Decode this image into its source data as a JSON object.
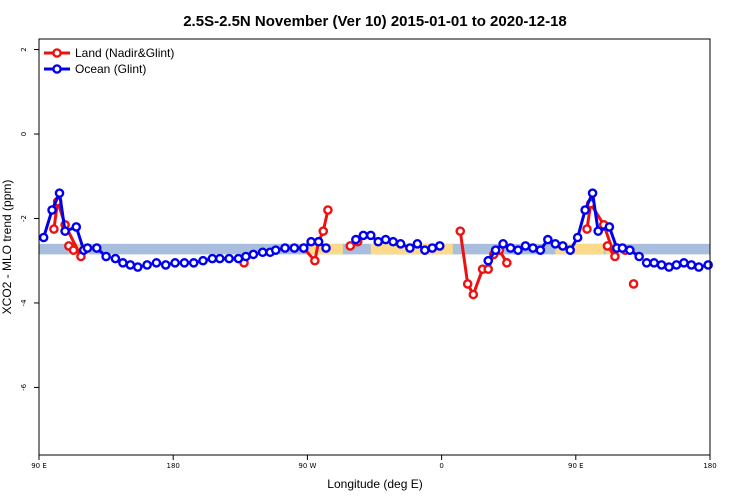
{
  "chart_data": {
    "type": "line",
    "title": "2.5S-2.5N November (Ver 10)   2015-01-01 to 2020-12-18",
    "xlabel": "Longitude (deg E)",
    "ylabel": "XCO2 - MLO trend (ppm)",
    "xlim": [
      90,
      450
    ],
    "ylim": [
      -7.6,
      2.25
    ],
    "x_ticks": [
      {
        "value": 90,
        "label": "90 E"
      },
      {
        "value": 162,
        "label": "180"
      },
      {
        "value": 234,
        "label": "90 W"
      },
      {
        "value": 306,
        "label": "0"
      },
      {
        "value": 378,
        "label": "90 E"
      },
      {
        "value": 450,
        "label": "180"
      }
    ],
    "y_ticks": [
      {
        "value": 2,
        "label": "2"
      },
      {
        "value": 0,
        "label": "0"
      },
      {
        "value": -2,
        "label": "-2"
      },
      {
        "value": -4,
        "label": "-4"
      },
      {
        "value": -6,
        "label": "-6"
      }
    ],
    "band": {
      "ymin": -2.85,
      "ymax": -2.6,
      "color": "#a8bedc",
      "land_color": "#fdd98a"
    },
    "land_ranges": [
      [
        106,
        117
      ],
      [
        235,
        253
      ],
      [
        268,
        312
      ],
      [
        367,
        380
      ],
      [
        380,
        393
      ],
      [
        394,
        405
      ]
    ],
    "legend": {
      "placement": "top-left"
    },
    "grid": false,
    "series": [
      {
        "name": "Land (Nadir&Glint)",
        "color": "#ee1111",
        "segments": [
          [
            [
              98,
              -2.25
            ],
            [
              100,
              -1.6
            ],
            [
              104,
              -2.15
            ],
            [
              112.5,
              -2.9
            ]
          ],
          [
            [
              106,
              -2.65
            ],
            [
              108.5,
              -2.75
            ]
          ],
          [
            [
              200,
              -3.05
            ]
          ],
          [
            [
              232,
              -2.7
            ],
            [
              238,
              -3.0
            ],
            [
              240,
              -2.55
            ],
            [
              242.5,
              -2.3
            ],
            [
              245,
              -1.8
            ]
          ],
          [
            [
              257,
              -2.65
            ],
            [
              261,
              -2.55
            ]
          ],
          [
            [
              316,
              -2.3
            ],
            [
              320,
              -3.55
            ],
            [
              323,
              -3.8
            ],
            [
              328,
              -3.2
            ],
            [
              331,
              -3.2
            ],
            [
              334,
              -2.85
            ],
            [
              337,
              -2.75
            ],
            [
              341,
              -3.05
            ]
          ],
          [
            [
              384,
              -2.25
            ],
            [
              386,
              -1.65
            ],
            [
              393,
              -2.15
            ],
            [
              399,
              -2.9
            ],
            [
              395,
              -2.65
            ],
            [
              404.5,
              -2.75
            ]
          ],
          [
            [
              409,
              -3.55
            ]
          ]
        ]
      },
      {
        "name": "Ocean (Glint)",
        "color": "#0000ee",
        "segments": [
          [
            [
              92.5,
              -2.45
            ],
            [
              97,
              -1.8
            ],
            [
              101,
              -1.4
            ],
            [
              104,
              -2.3
            ],
            [
              110,
              -2.2
            ],
            [
              114,
              -2.75
            ],
            [
              116,
              -2.7
            ],
            [
              121,
              -2.7
            ],
            [
              126,
              -2.9
            ]
          ],
          [
            [
              131,
              -2.95
            ],
            [
              135,
              -3.05
            ],
            [
              139,
              -3.1
            ],
            [
              143,
              -3.15
            ],
            [
              148,
              -3.1
            ],
            [
              153,
              -3.05
            ],
            [
              158,
              -3.1
            ],
            [
              163,
              -3.05
            ],
            [
              168,
              -3.05
            ],
            [
              173,
              -3.05
            ],
            [
              178,
              -3.0
            ],
            [
              183,
              -2.95
            ],
            [
              187,
              -2.95
            ],
            [
              192,
              -2.95
            ],
            [
              197,
              -2.95
            ],
            [
              201,
              -2.9
            ],
            [
              205,
              -2.85
            ],
            [
              210,
              -2.8
            ],
            [
              214,
              -2.8
            ],
            [
              217,
              -2.75
            ],
            [
              222,
              -2.7
            ],
            [
              227,
              -2.7
            ],
            [
              232,
              -2.7
            ],
            [
              236,
              -2.55
            ],
            [
              240,
              -2.55
            ],
            [
              244,
              -2.7
            ]
          ],
          [
            [
              260,
              -2.5
            ],
            [
              264,
              -2.4
            ],
            [
              268,
              -2.4
            ],
            [
              272,
              -2.55
            ],
            [
              276,
              -2.5
            ],
            [
              280,
              -2.55
            ],
            [
              284,
              -2.6
            ],
            [
              289,
              -2.7
            ],
            [
              293,
              -2.6
            ],
            [
              297,
              -2.75
            ],
            [
              301,
              -2.7
            ],
            [
              305,
              -2.65
            ]
          ],
          [
            [
              331,
              -3.0
            ],
            [
              335,
              -2.75
            ],
            [
              339,
              -2.6
            ],
            [
              343,
              -2.7
            ],
            [
              347,
              -2.75
            ],
            [
              351,
              -2.65
            ],
            [
              355,
              -2.7
            ],
            [
              359,
              -2.75
            ],
            [
              363,
              -2.5
            ],
            [
              367,
              -2.6
            ],
            [
              371,
              -2.65
            ],
            [
              375,
              -2.75
            ],
            [
              379,
              -2.45
            ],
            [
              383,
              -1.8
            ],
            [
              387,
              -1.4
            ],
            [
              390,
              -2.3
            ],
            [
              396,
              -2.2
            ],
            [
              400,
              -2.7
            ],
            [
              403,
              -2.7
            ],
            [
              407,
              -2.75
            ],
            [
              412,
              -2.9
            ]
          ],
          [
            [
              416,
              -3.05
            ],
            [
              420,
              -3.05
            ],
            [
              424,
              -3.1
            ],
            [
              428,
              -3.15
            ],
            [
              432,
              -3.1
            ],
            [
              436,
              -3.05
            ],
            [
              440,
              -3.1
            ],
            [
              444,
              -3.15
            ],
            [
              449,
              -3.1
            ]
          ]
        ]
      }
    ]
  }
}
